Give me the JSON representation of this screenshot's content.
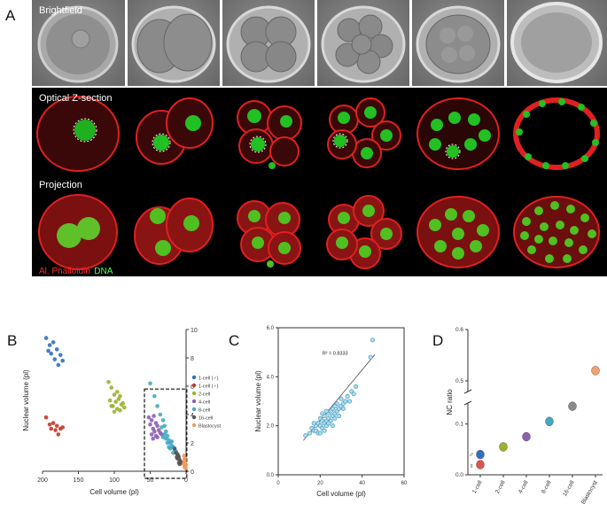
{
  "panelA": {
    "letter": "A",
    "row_labels": {
      "brightfield": "Brightfield",
      "optical": "Optical Z-section",
      "projection": "Projection"
    },
    "stain_red": "Al. Phalloidin",
    "stain_green": "DNA"
  },
  "panelB": {
    "letter": "B",
    "xlabel": "Cell volume (pl)",
    "ylabel": "Nuclear volume (pl)",
    "x_ticks": [
      "200",
      "150",
      "100",
      "50",
      "0"
    ],
    "y_ticks": [
      "0",
      "2",
      "4",
      "6",
      "8",
      "10"
    ],
    "legend": [
      "1-cell (♂)",
      "1-cell (♀)",
      "2-cell",
      "4-cell",
      "8-cell",
      "16-cell",
      "Blastocyst"
    ]
  },
  "panelC": {
    "letter": "C",
    "xlabel": "Cell volume (pl)",
    "ylabel": "Nuclear volume (pl)",
    "x_ticks": [
      "0",
      "20",
      "40",
      "60"
    ],
    "y_ticks": [
      "0.0",
      "2.0",
      "4.0",
      "6.0"
    ],
    "r2": "R² = 0.8333"
  },
  "panelD": {
    "letter": "D",
    "ylabel": "NC ratio",
    "y_ticks": [
      "0.0",
      "0.1",
      "0.5",
      "0.6"
    ],
    "categories": [
      "1-cell",
      "2-cell",
      "4-cell",
      "8-cell",
      "16-cell",
      "Blastocyst"
    ],
    "male_symbol": "♂",
    "female_symbol": "♀"
  },
  "chart_data": [
    {
      "type": "scatter",
      "xlabel": "Cell volume (pl)",
      "ylabel": "Nuclear volume (pl)",
      "xlim": [
        200,
        0
      ],
      "ylim": [
        0,
        10
      ],
      "series": [
        {
          "name": "1-cell (♂)",
          "color": "#2f6fc4",
          "points": [
            [
              195,
              9.4
            ],
            [
              190,
              8.9
            ],
            [
              185,
              9.1
            ],
            [
              180,
              8.6
            ],
            [
              188,
              8.3
            ],
            [
              175,
              8.2
            ],
            [
              183,
              7.9
            ],
            [
              178,
              7.5
            ],
            [
              172,
              7.8
            ],
            [
              192,
              8.5
            ]
          ]
        },
        {
          "name": "1-cell (♀)",
          "color": "#c0392b",
          "points": [
            [
              195,
              3.8
            ],
            [
              190,
              3.3
            ],
            [
              185,
              3.4
            ],
            [
              180,
              3.2
            ],
            [
              175,
              3.0
            ],
            [
              182,
              2.9
            ],
            [
              178,
              2.6
            ],
            [
              188,
              3.0
            ],
            [
              172,
              3.1
            ]
          ]
        },
        {
          "name": "2-cell",
          "color": "#9bb12f",
          "points": [
            [
              108,
              6.3
            ],
            [
              104,
              5.9
            ],
            [
              100,
              5.4
            ],
            [
              96,
              5.6
            ],
            [
              92,
              5.3
            ],
            [
              106,
              5.0
            ],
            [
              98,
              4.9
            ],
            [
              94,
              5.1
            ],
            [
              90,
              4.7
            ],
            [
              102,
              4.6
            ],
            [
              96,
              4.4
            ],
            [
              88,
              4.8
            ],
            [
              92,
              4.3
            ],
            [
              100,
              4.2
            ],
            [
              86,
              4.5
            ],
            [
              104,
              4.6
            ]
          ]
        },
        {
          "name": "4-cell",
          "color": "#8e5fb3",
          "points": [
            [
              52,
              3.8
            ],
            [
              48,
              3.6
            ],
            [
              45,
              3.9
            ],
            [
              50,
              3.3
            ],
            [
              42,
              3.4
            ],
            [
              46,
              3.0
            ],
            [
              40,
              3.2
            ],
            [
              44,
              2.8
            ],
            [
              38,
              2.9
            ],
            [
              48,
              2.6
            ],
            [
              36,
              2.7
            ],
            [
              42,
              2.5
            ],
            [
              34,
              2.6
            ],
            [
              40,
              2.4
            ],
            [
              46,
              2.3
            ]
          ]
        },
        {
          "name": "8-cell",
          "color": "#44a8c2",
          "points": [
            [
              50,
              6.2
            ],
            [
              44,
              5.3
            ],
            [
              40,
              4.6
            ],
            [
              36,
              4.0
            ],
            [
              32,
              3.6
            ],
            [
              30,
              3.2
            ],
            [
              28,
              2.8
            ],
            [
              26,
              2.5
            ],
            [
              24,
              2.2
            ],
            [
              22,
              2.0
            ],
            [
              20,
              1.8
            ],
            [
              18,
              1.7
            ],
            [
              16,
              1.5
            ],
            [
              14,
              1.4
            ],
            [
              30,
              2.6
            ],
            [
              26,
              2.0
            ],
            [
              22,
              1.6
            ],
            [
              28,
              2.3
            ],
            [
              34,
              3.1
            ],
            [
              20,
              2.1
            ],
            [
              18,
              1.3
            ],
            [
              24,
              1.7
            ],
            [
              32,
              2.4
            ]
          ]
        },
        {
          "name": "16-cell",
          "color": "#555555",
          "points": [
            [
              16,
              1.6
            ],
            [
              14,
              1.3
            ],
            [
              12,
              1.2
            ],
            [
              10,
              1.0
            ],
            [
              12,
              0.9
            ],
            [
              9,
              0.8
            ],
            [
              11,
              1.1
            ],
            [
              13,
              1.0
            ],
            [
              8,
              0.7
            ],
            [
              10,
              0.6
            ],
            [
              7,
              0.6
            ],
            [
              9,
              0.5
            ]
          ]
        },
        {
          "name": "Blastocyst",
          "color": "#f39a5c",
          "points": [
            [
              3,
              1.1
            ],
            [
              2,
              0.9
            ],
            [
              2.5,
              0.7
            ],
            [
              1.5,
              0.6
            ],
            [
              1,
              0.5
            ],
            [
              2,
              0.4
            ],
            [
              1.2,
              0.35
            ],
            [
              0.8,
              0.3
            ],
            [
              3,
              0.5
            ],
            [
              1.8,
              0.8
            ],
            [
              0.6,
              0.2
            ],
            [
              2.2,
              0.3
            ]
          ]
        }
      ]
    },
    {
      "type": "scatter",
      "xlabel": "Cell volume (pl)",
      "ylabel": "Nuclear volume (pl)",
      "xlim": [
        0,
        60
      ],
      "ylim": [
        0,
        6
      ],
      "r2": "R² = 0.8333",
      "trend": [
        [
          12,
          1.4
        ],
        [
          46,
          4.9
        ]
      ],
      "points": [
        [
          13,
          1.6
        ],
        [
          15,
          1.7
        ],
        [
          16,
          1.9
        ],
        [
          17,
          1.8
        ],
        [
          18,
          2.0
        ],
        [
          18,
          1.8
        ],
        [
          19,
          2.1
        ],
        [
          20,
          2.0
        ],
        [
          20,
          2.3
        ],
        [
          21,
          1.9
        ],
        [
          21,
          2.2
        ],
        [
          22,
          2.1
        ],
        [
          22,
          2.4
        ],
        [
          23,
          2.2
        ],
        [
          23,
          2.0
        ],
        [
          24,
          2.5
        ],
        [
          24,
          2.3
        ],
        [
          25,
          2.2
        ],
        [
          25,
          2.6
        ],
        [
          26,
          2.4
        ],
        [
          26,
          2.7
        ],
        [
          27,
          2.5
        ],
        [
          27,
          2.3
        ],
        [
          28,
          2.6
        ],
        [
          28,
          2.9
        ],
        [
          29,
          2.7
        ],
        [
          29,
          2.4
        ],
        [
          30,
          2.8
        ],
        [
          30,
          3.1
        ],
        [
          31,
          2.9
        ],
        [
          32,
          3.0
        ],
        [
          33,
          3.2
        ],
        [
          34,
          3.0
        ],
        [
          35,
          3.4
        ],
        [
          36,
          3.3
        ],
        [
          26,
          2.0
        ],
        [
          24,
          2.1
        ],
        [
          22,
          1.8
        ],
        [
          19,
          1.7
        ],
        [
          37,
          3.6
        ],
        [
          44,
          4.8
        ],
        [
          45,
          5.5
        ],
        [
          21,
          2.5
        ],
        [
          23,
          2.6
        ],
        [
          27,
          2.8
        ],
        [
          31,
          2.7
        ],
        [
          17,
          2.1
        ],
        [
          20,
          1.7
        ]
      ]
    },
    {
      "type": "scatter",
      "ylabel": "NC ratio",
      "categories": [
        "1-cell",
        "2-cell",
        "4-cell",
        "8-cell",
        "16-cell",
        "Blastocyst"
      ],
      "y_break": true,
      "ylim": [
        0,
        0.6
      ],
      "series": [
        {
          "name": "♂",
          "color": "#2f6fc4",
          "points": [
            [
              "1-cell",
              0.04
            ]
          ]
        },
        {
          "name": "♀",
          "color": "#e0534a",
          "points": [
            [
              "1-cell",
              0.02
            ]
          ]
        },
        {
          "name": "2-cell",
          "color": "#9bb12f",
          "points": [
            [
              "2-cell",
              0.055
            ]
          ]
        },
        {
          "name": "4-cell",
          "color": "#8e5fb3",
          "points": [
            [
              "4-cell",
              0.075
            ]
          ]
        },
        {
          "name": "8-cell",
          "color": "#44a8c2",
          "points": [
            [
              "8-cell",
              0.105
            ]
          ]
        },
        {
          "name": "16-cell",
          "color": "#8a8a8a",
          "points": [
            [
              "16-cell",
              0.135
            ]
          ]
        },
        {
          "name": "Blastocyst",
          "color": "#f4a071",
          "points": [
            [
              "Blastocyst",
              0.52
            ]
          ]
        }
      ]
    }
  ]
}
